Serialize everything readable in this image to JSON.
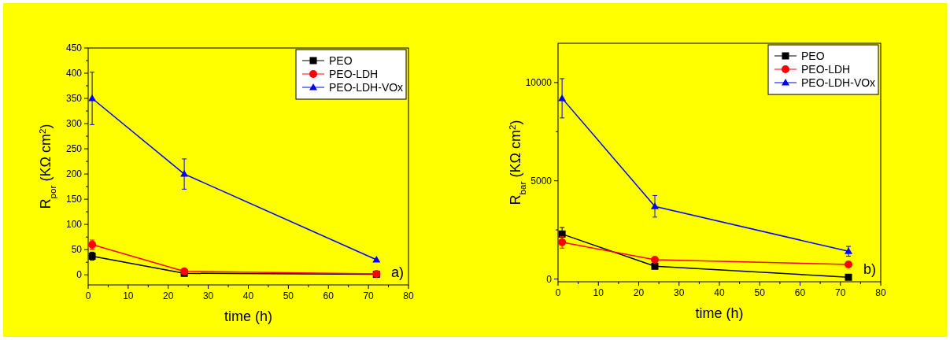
{
  "chart_data": [
    {
      "type": "line",
      "xlabel": "time (h)",
      "ylabel": "R$_{por}$ (KΩ cm$^{2}$)",
      "annotations": [
        "a)"
      ],
      "xlim": [
        0,
        80
      ],
      "xticks": [
        0,
        10,
        20,
        30,
        40,
        50,
        60,
        70,
        80
      ],
      "ylim": [
        -20,
        450
      ],
      "yticks": [
        0,
        50,
        100,
        150,
        200,
        250,
        300,
        350,
        400,
        450
      ],
      "legend": "top right",
      "grid": false,
      "x": [
        1,
        24,
        72
      ],
      "series": [
        {
          "name": "PEO",
          "color": "#000000",
          "marker": "square",
          "values": [
            37,
            3,
            1
          ],
          "errors": [
            8,
            null,
            null
          ]
        },
        {
          "name": "PEO-LDH",
          "color": "#ff0000",
          "marker": "circle",
          "values": [
            60,
            7,
            2
          ],
          "errors": [
            9,
            null,
            null
          ]
        },
        {
          "name": "PEO-LDH-VOx",
          "color": "#0000ff",
          "marker": "triangle",
          "values": [
            350,
            200,
            30
          ],
          "errors": [
            52,
            30,
            null
          ]
        }
      ]
    },
    {
      "type": "line",
      "xlabel": "time (h)",
      "ylabel": "R$_{bar}$ (KΩ cm$^{2}$)",
      "annotations": [
        "b)"
      ],
      "xlim": [
        0,
        80
      ],
      "xticks": [
        0,
        10,
        20,
        30,
        40,
        50,
        60,
        70,
        80
      ],
      "ylim": [
        -140,
        12000
      ],
      "yticks": [
        0,
        5000,
        10000
      ],
      "legend": "top right",
      "grid": false,
      "x": [
        1,
        24,
        72
      ],
      "series": [
        {
          "name": "PEO",
          "color": "#000000",
          "marker": "square",
          "values": [
            2290,
            650,
            90
          ],
          "errors": [
            330,
            null,
            null
          ]
        },
        {
          "name": "PEO-LDH",
          "color": "#ff0000",
          "marker": "circle",
          "values": [
            1870,
            980,
            740
          ],
          "errors": [
            300,
            null,
            null
          ]
        },
        {
          "name": "PEO-LDH-VOx",
          "color": "#0000ff",
          "marker": "triangle",
          "values": [
            9200,
            3700,
            1410
          ],
          "errors": [
            1000,
            550,
            250
          ]
        }
      ]
    }
  ]
}
